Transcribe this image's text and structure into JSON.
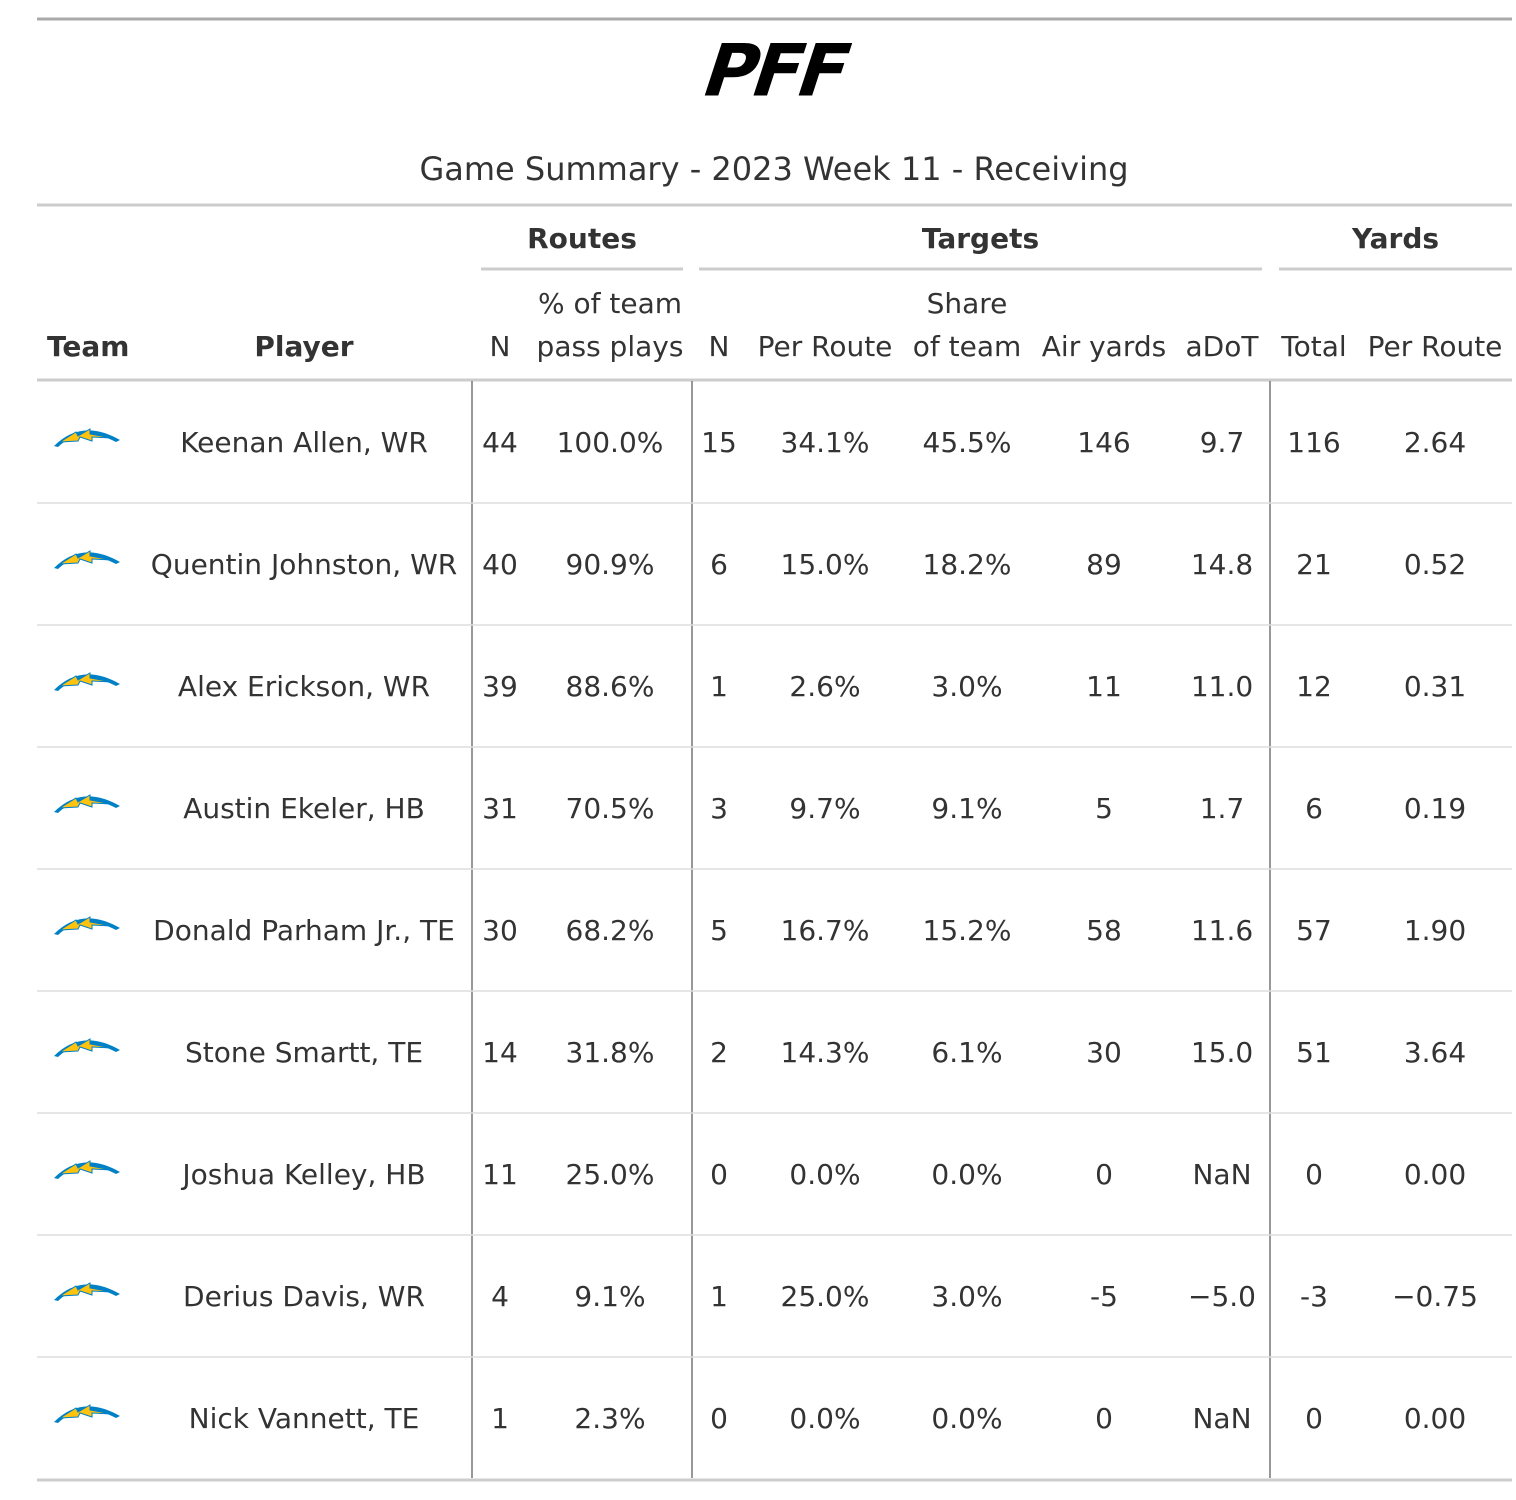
{
  "logo": "PFF",
  "title": "Game Summary - 2023 Week 11 - Receiving",
  "spanners": [
    "Routes",
    "Targets",
    "Yards"
  ],
  "columns": [
    [
      "Team"
    ],
    [
      "Player"
    ],
    [
      "N"
    ],
    [
      "% of team",
      "pass plays"
    ],
    [
      "N"
    ],
    [
      "Per Route"
    ],
    [
      "Share",
      "of team"
    ],
    [
      "Air yards"
    ],
    [
      "aDoT"
    ],
    [
      "Total"
    ],
    [
      "Per Route"
    ]
  ],
  "rows": [
    [
      "Keenan Allen, WR",
      "44",
      "100.0%",
      "15",
      "34.1%",
      "45.5%",
      "146",
      "9.7",
      "116",
      "2.64"
    ],
    [
      "Quentin Johnston, WR",
      "40",
      "90.9%",
      "6",
      "15.0%",
      "18.2%",
      "89",
      "14.8",
      "21",
      "0.52"
    ],
    [
      "Alex Erickson, WR",
      "39",
      "88.6%",
      "1",
      "2.6%",
      "3.0%",
      "11",
      "11.0",
      "12",
      "0.31"
    ],
    [
      "Austin Ekeler, HB",
      "31",
      "70.5%",
      "3",
      "9.7%",
      "9.1%",
      "5",
      "1.7",
      "6",
      "0.19"
    ],
    [
      "Donald Parham Jr., TE",
      "30",
      "68.2%",
      "5",
      "16.7%",
      "15.2%",
      "58",
      "11.6",
      "57",
      "1.90"
    ],
    [
      "Stone Smartt, TE",
      "14",
      "31.8%",
      "2",
      "14.3%",
      "6.1%",
      "30",
      "15.0",
      "51",
      "3.64"
    ],
    [
      "Joshua Kelley, HB",
      "11",
      "25.0%",
      "0",
      "0.0%",
      "0.0%",
      "0",
      "NaN",
      "0",
      "0.00"
    ],
    [
      "Derius Davis, WR",
      "4",
      "9.1%",
      "1",
      "25.0%",
      "3.0%",
      "-5",
      "−5.0",
      "-3",
      "−0.75"
    ],
    [
      "Nick Vannett, TE",
      "1",
      "2.3%",
      "0",
      "0.0%",
      "0.0%",
      "0",
      "NaN",
      "0",
      "0.00"
    ]
  ]
}
